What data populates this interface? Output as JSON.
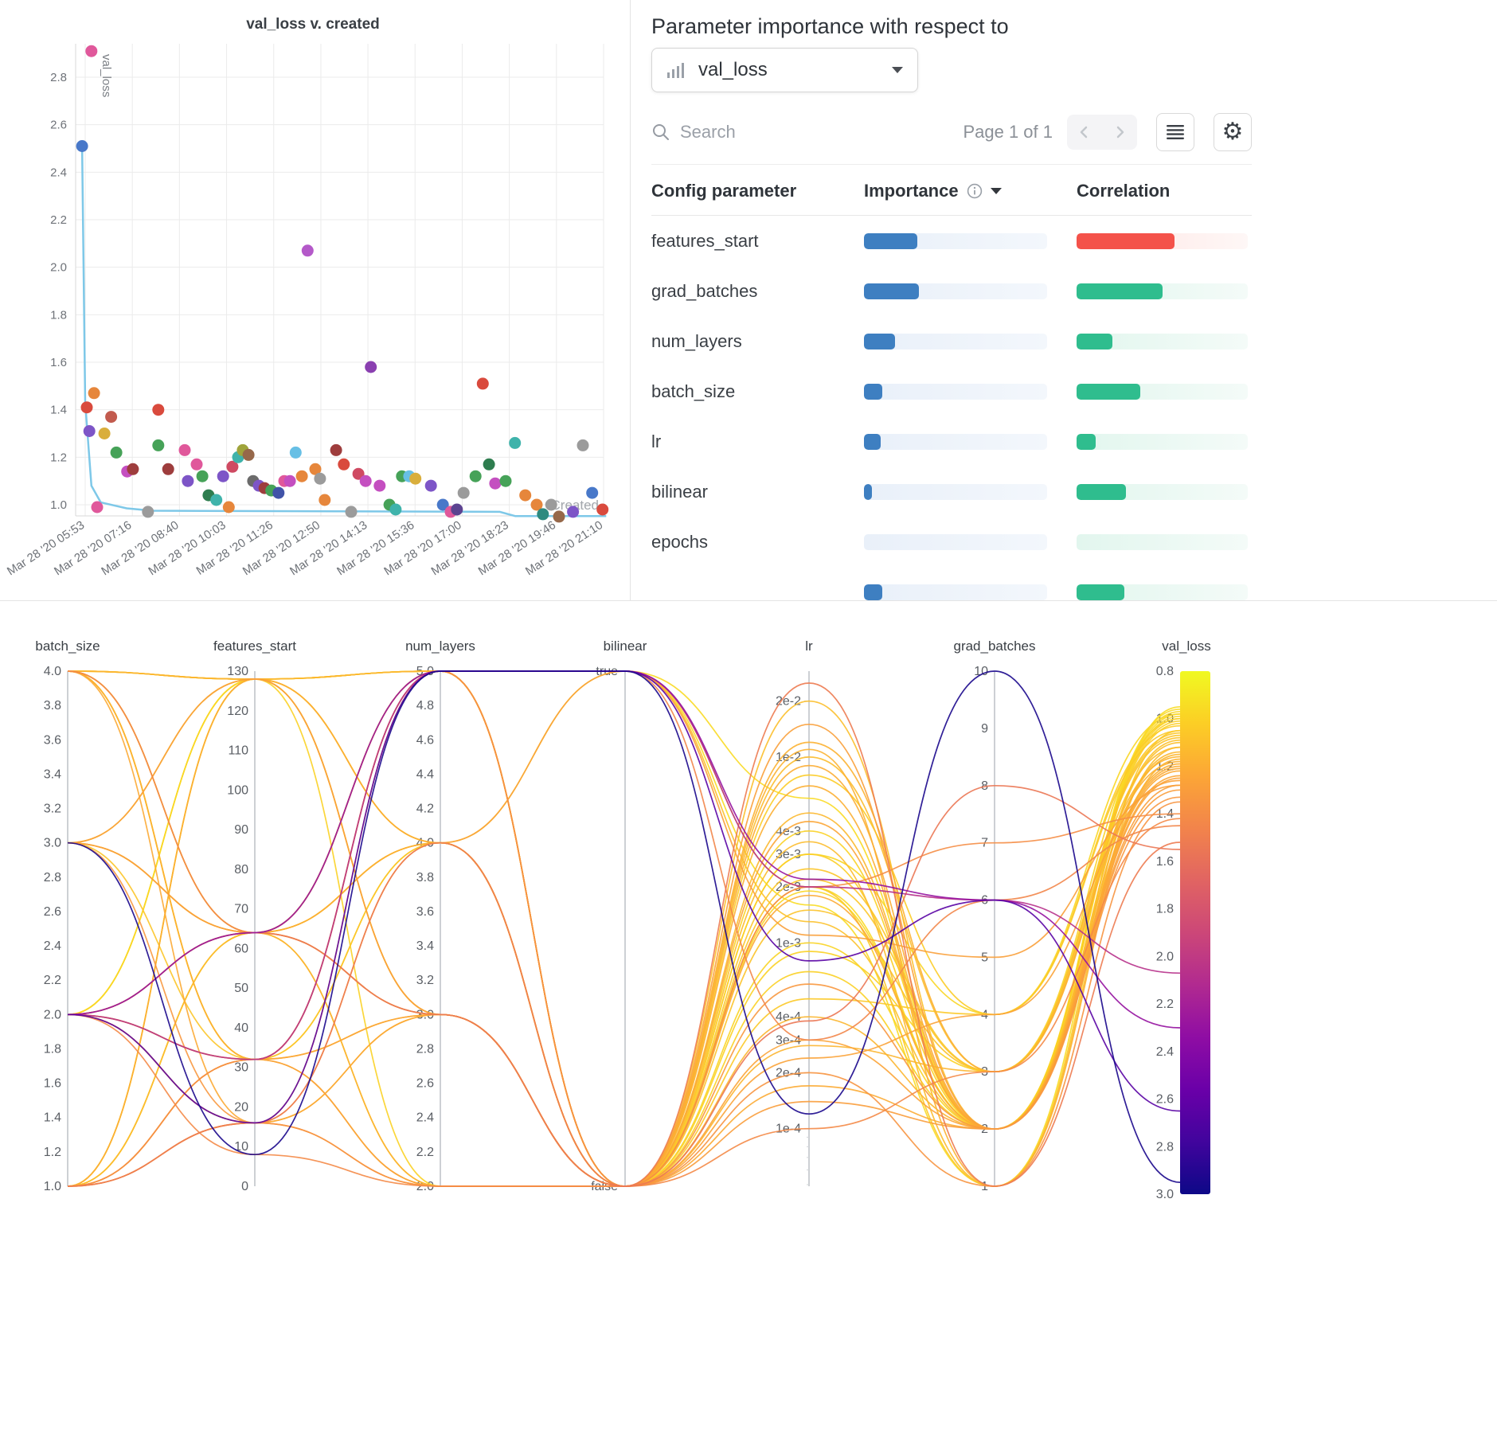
{
  "colors": {
    "accent_blue": "#3e7fc1",
    "importance_fill": "#3e7fc1",
    "importance_track": "#edf2f9",
    "corr_red": "#f4524a",
    "corr_red_track": "#fdeceb",
    "corr_green": "#2fbd8e",
    "corr_green_track": "#e7f7f1",
    "line_blue": "#7ec8e8",
    "panel_border": "#e4e4e4"
  },
  "icons": {
    "gear": "⚙"
  },
  "importance_panel": {
    "title": "Parameter importance with respect to",
    "metric_select": "val_loss",
    "search_placeholder": "Search",
    "pagination": "Page 1 of 1",
    "columns": [
      "Config parameter",
      "Importance",
      "Correlation"
    ],
    "rows": [
      {
        "name": "features_start",
        "importance": 0.29,
        "correlation": 0.57,
        "corr_color": "red"
      },
      {
        "name": "grad_batches",
        "importance": 0.3,
        "correlation": 0.5,
        "corr_color": "green"
      },
      {
        "name": "num_layers",
        "importance": 0.17,
        "correlation": 0.21,
        "corr_color": "green"
      },
      {
        "name": "batch_size",
        "importance": 0.1,
        "correlation": 0.37,
        "corr_color": "green"
      },
      {
        "name": "lr",
        "importance": 0.09,
        "correlation": 0.11,
        "corr_color": "green"
      },
      {
        "name": "bilinear",
        "importance": 0.045,
        "correlation": 0.29,
        "corr_color": "green"
      },
      {
        "name": "epochs",
        "importance": 0.0,
        "correlation": 0.0,
        "corr_color": "green"
      },
      {
        "name": "",
        "importance": 0.1,
        "correlation": 0.28,
        "corr_color": "green"
      }
    ]
  },
  "chart_data": [
    {
      "type": "scatter",
      "title": "val_loss v. created",
      "xlabel": "Created",
      "ylabel": "val_loss",
      "ylim": [
        0.93,
        2.95
      ],
      "x_ticks": [
        "Mar 28 '20 05:53",
        "Mar 28 '20 07:16",
        "Mar 28 '20 08:40",
        "Mar 28 '20 10:03",
        "Mar 28 '20 11:26",
        "Mar 28 '20 12:50",
        "Mar 28 '20 14:13",
        "Mar 28 '20 15:36",
        "Mar 28 '20 17:00",
        "Mar 28 '20 18:23",
        "Mar 28 '20 19:46",
        "Mar 28 '20 21:10"
      ],
      "y_ticks": [
        "2.8",
        "2.6",
        "2.4",
        "2.2",
        "2.0",
        "1.8",
        "1.6",
        "1.4",
        "1.2",
        "1.0"
      ],
      "line": {
        "color": "#7ec8e8",
        "points": [
          [
            -0.006,
            2.51
          ],
          [
            0.0,
            1.43
          ],
          [
            0.012,
            1.08
          ],
          [
            0.03,
            1.01
          ],
          [
            0.08,
            0.985
          ],
          [
            0.13,
            0.975
          ],
          [
            0.8,
            0.97
          ],
          [
            0.83,
            0.952
          ],
          [
            1.005,
            0.952
          ]
        ]
      },
      "points": [
        [
          -0.006,
          2.51,
          "#4878c9"
        ],
        [
          0.012,
          2.91,
          "#e0589b"
        ],
        [
          0.003,
          1.41,
          "#d94a3d"
        ],
        [
          0.008,
          1.31,
          "#7d55c7"
        ],
        [
          0.017,
          1.47,
          "#e6863b"
        ],
        [
          0.023,
          0.99,
          "#e0589b"
        ],
        [
          0.037,
          1.3,
          "#d9ae3c"
        ],
        [
          0.05,
          1.37,
          "#c25b4e"
        ],
        [
          0.06,
          1.22,
          "#46a258"
        ],
        [
          0.081,
          1.14,
          "#c44fc0"
        ],
        [
          0.092,
          1.15,
          "#9e3d3d"
        ],
        [
          0.121,
          0.97,
          "#9b9b9b"
        ],
        [
          0.141,
          1.4,
          "#d94a3d"
        ],
        [
          0.141,
          1.25,
          "#46a258"
        ],
        [
          0.16,
          1.15,
          "#9e3d3d"
        ],
        [
          0.192,
          1.23,
          "#e0589b"
        ],
        [
          0.198,
          1.1,
          "#7d55c7"
        ],
        [
          0.215,
          1.17,
          "#e0589b"
        ],
        [
          0.226,
          1.12,
          "#46a258"
        ],
        [
          0.238,
          1.04,
          "#2e7d4f"
        ],
        [
          0.253,
          1.02,
          "#3fb3ab"
        ],
        [
          0.266,
          1.12,
          "#7d55c7"
        ],
        [
          0.277,
          0.99,
          "#e6863b"
        ],
        [
          0.284,
          1.16,
          "#cf4a62"
        ],
        [
          0.295,
          1.2,
          "#3fb3ab"
        ],
        [
          0.304,
          1.23,
          "#9fa43b"
        ],
        [
          0.315,
          1.21,
          "#96684a"
        ],
        [
          0.324,
          1.1,
          "#6b6b6b"
        ],
        [
          0.335,
          1.08,
          "#7d55c7"
        ],
        [
          0.346,
          1.07,
          "#9e3d3d"
        ],
        [
          0.359,
          1.06,
          "#46a258"
        ],
        [
          0.373,
          1.05,
          "#4153a8"
        ],
        [
          0.384,
          1.1,
          "#e0589b"
        ],
        [
          0.395,
          1.1,
          "#c44fc0"
        ],
        [
          0.406,
          1.22,
          "#67bfe5"
        ],
        [
          0.418,
          1.12,
          "#e6863b"
        ],
        [
          0.429,
          2.07,
          "#b459c9"
        ],
        [
          0.444,
          1.15,
          "#e6863b"
        ],
        [
          0.453,
          1.11,
          "#9b9b9b"
        ],
        [
          0.462,
          1.02,
          "#e6863b"
        ],
        [
          0.484,
          1.23,
          "#9e3d3d"
        ],
        [
          0.499,
          1.17,
          "#d94a3d"
        ],
        [
          0.513,
          0.97,
          "#9b9b9b"
        ],
        [
          0.527,
          1.13,
          "#cf4a62"
        ],
        [
          0.541,
          1.1,
          "#c44fc0"
        ],
        [
          0.551,
          1.58,
          "#8a3fb0"
        ],
        [
          0.568,
          1.08,
          "#c44fc0"
        ],
        [
          0.587,
          1.0,
          "#46a258"
        ],
        [
          0.599,
          0.98,
          "#3fb3ab"
        ],
        [
          0.611,
          1.12,
          "#46a258"
        ],
        [
          0.625,
          1.12,
          "#67bfe5"
        ],
        [
          0.637,
          1.11,
          "#d9ae3c"
        ],
        [
          0.667,
          1.08,
          "#7d55c7"
        ],
        [
          0.69,
          1.0,
          "#4878c9"
        ],
        [
          0.705,
          0.97,
          "#e0589b"
        ],
        [
          0.717,
          0.98,
          "#5c4390"
        ],
        [
          0.73,
          1.05,
          "#9b9b9b"
        ],
        [
          0.753,
          1.12,
          "#46a258"
        ],
        [
          0.767,
          1.51,
          "#d94a3d"
        ],
        [
          0.779,
          1.17,
          "#2e7d4f"
        ],
        [
          0.791,
          1.09,
          "#c44fc0"
        ],
        [
          0.811,
          1.1,
          "#46a258"
        ],
        [
          0.829,
          1.26,
          "#3fb3ab"
        ],
        [
          0.849,
          1.04,
          "#e6863b"
        ],
        [
          0.871,
          1.0,
          "#e6863b"
        ],
        [
          0.883,
          0.96,
          "#2d8a80"
        ],
        [
          0.899,
          1.0,
          "#9b9b9b"
        ],
        [
          0.914,
          0.95,
          "#96684a"
        ],
        [
          0.941,
          0.97,
          "#7d55c7"
        ],
        [
          0.96,
          1.25,
          "#9b9b9b"
        ],
        [
          0.978,
          1.05,
          "#4878c9"
        ],
        [
          0.998,
          0.98,
          "#d94a3d"
        ]
      ]
    },
    {
      "type": "parallel-coordinates",
      "colormap": "plasma-reversed",
      "axes": [
        {
          "name": "batch_size",
          "scale": "linear",
          "domain": [
            1.0,
            4.0
          ],
          "ticks": [
            "4.0",
            "3.8",
            "3.6",
            "3.4",
            "3.2",
            "3.0",
            "2.8",
            "2.6",
            "2.4",
            "2.2",
            "2.0",
            "1.8",
            "1.6",
            "1.4",
            "1.2",
            "1.0"
          ]
        },
        {
          "name": "features_start",
          "scale": "linear",
          "domain": [
            0,
            130
          ],
          "ticks": [
            "130",
            "120",
            "110",
            "100",
            "90",
            "80",
            "70",
            "60",
            "50",
            "40",
            "30",
            "20",
            "10",
            "0"
          ]
        },
        {
          "name": "num_layers",
          "scale": "linear",
          "domain": [
            2.0,
            5.0
          ],
          "ticks": [
            "5.0",
            "4.8",
            "4.6",
            "4.4",
            "4.2",
            "4.0",
            "3.8",
            "3.6",
            "3.4",
            "3.2",
            "3.0",
            "2.8",
            "2.6",
            "2.4",
            "2.2",
            "2.0"
          ]
        },
        {
          "name": "bilinear",
          "scale": "binary",
          "ticks": [
            "true",
            "false"
          ]
        },
        {
          "name": "lr",
          "scale": "log",
          "domain": [
            4.9e-05,
            0.029
          ],
          "ticks": [
            {
              "v": 0.02,
              "t": "2e-2"
            },
            {
              "v": 0.01,
              "t": "1e-2"
            },
            {
              "v": 0.004,
              "t": "4e-3"
            },
            {
              "v": 0.003,
              "t": "3e-3"
            },
            {
              "v": 0.002,
              "t": "2e-3"
            },
            {
              "v": 0.001,
              "t": "1e-3"
            },
            {
              "v": 0.0004,
              "t": "4e-4"
            },
            {
              "v": 0.0003,
              "t": "3e-4"
            },
            {
              "v": 0.0002,
              "t": "2e-4"
            },
            {
              "v": 0.0001,
              "t": "1e-4"
            }
          ]
        },
        {
          "name": "grad_batches",
          "scale": "linear",
          "domain": [
            1,
            10
          ],
          "ticks": [
            "10",
            "9",
            "8",
            "7",
            "6",
            "5",
            "4",
            "3",
            "2",
            "1"
          ]
        },
        {
          "name": "val_loss",
          "scale": "colorbar",
          "domain": [
            0.8,
            3.0
          ],
          "ticks": [
            "0.8",
            "1.0",
            "1.2",
            "1.4",
            "1.6",
            "1.8",
            "2.0",
            "2.2",
            "2.4",
            "2.6",
            "2.8",
            "3.0"
          ]
        }
      ],
      "runs_columns": [
        "batch_size",
        "features_start",
        "num_layers",
        "bilinear",
        "lr",
        "grad_batches",
        "val_loss"
      ],
      "runs": [
        [
          4,
          128,
          5,
          1,
          0.002,
          2,
          0.97
        ],
        [
          4,
          128,
          5,
          0,
          0.001,
          2,
          0.99
        ],
        [
          4,
          64,
          5,
          0,
          0.003,
          2,
          1.02
        ],
        [
          4,
          128,
          4,
          0,
          0.002,
          1,
          1.05
        ],
        [
          3,
          8,
          5,
          1,
          0.00012,
          10,
          2.95
        ],
        [
          2,
          64,
          5,
          1,
          0.0022,
          6,
          2.3
        ],
        [
          2,
          16,
          5,
          1,
          0.0008,
          6,
          2.65
        ],
        [
          1,
          32,
          3,
          0,
          0.02,
          2,
          1.1
        ],
        [
          1,
          64,
          3,
          0,
          0.01,
          3,
          1.12
        ],
        [
          1,
          128,
          2,
          0,
          0.004,
          2,
          1.0
        ],
        [
          2,
          128,
          3,
          0,
          0.003,
          4,
          0.98
        ],
        [
          2,
          64,
          4,
          0,
          0.0015,
          3,
          1.08
        ],
        [
          4,
          32,
          5,
          0,
          0.0004,
          2,
          1.15
        ],
        [
          3,
          64,
          4,
          0,
          0.009,
          2,
          1.2
        ],
        [
          1,
          16,
          2,
          0,
          0.0002,
          1,
          1.35
        ],
        [
          2,
          32,
          3,
          0,
          0.0003,
          2,
          1.25
        ],
        [
          4,
          128,
          5,
          0,
          0.012,
          3,
          1.18
        ],
        [
          1,
          64,
          4,
          0,
          0.0005,
          4,
          1.05
        ],
        [
          2,
          128,
          5,
          1,
          0.006,
          2,
          0.96
        ],
        [
          3,
          32,
          4,
          0,
          0.0025,
          3,
          1.07
        ],
        [
          4,
          16,
          3,
          0,
          0.0018,
          2,
          1.22
        ],
        [
          1,
          128,
          5,
          0,
          0.0007,
          2,
          1.01
        ],
        [
          2,
          16,
          4,
          1,
          0.0011,
          5,
          1.28
        ],
        [
          4,
          64,
          2,
          0,
          0.0035,
          1,
          1.12
        ],
        [
          1,
          32,
          5,
          0,
          0.002,
          7,
          1.4
        ],
        [
          3,
          128,
          3,
          0,
          0.00014,
          2,
          1.3
        ],
        [
          2,
          64,
          2,
          0,
          0.00028,
          3,
          1.16
        ],
        [
          4,
          32,
          4,
          0,
          0.008,
          4,
          1.03
        ],
        [
          1,
          16,
          5,
          0,
          0.0045,
          2,
          1.24
        ],
        [
          2,
          128,
          4,
          1,
          0.0016,
          1,
          0.95
        ],
        [
          3,
          16,
          2,
          0,
          0.0006,
          2,
          1.33
        ],
        [
          4,
          128,
          3,
          0,
          0.0022,
          3,
          1.06
        ],
        [
          1,
          64,
          5,
          1,
          0.0013,
          2,
          1.09
        ],
        [
          2,
          32,
          5,
          0,
          0.005,
          2,
          1.14
        ],
        [
          3,
          64,
          5,
          0,
          0.0009,
          3,
          1.0
        ],
        [
          1,
          128,
          4,
          0,
          0.00017,
          2,
          1.21
        ],
        [
          4,
          64,
          5,
          1,
          0.0003,
          6,
          1.45
        ],
        [
          2,
          16,
          3,
          0,
          0.007,
          2,
          1.19
        ],
        [
          1,
          32,
          2,
          0,
          0.00024,
          4,
          1.26
        ],
        [
          3,
          128,
          5,
          0,
          0.0019,
          2,
          0.98
        ],
        [
          2,
          64,
          3,
          0,
          0.00038,
          8,
          1.55
        ],
        [
          4,
          32,
          2,
          0,
          0.011,
          1,
          1.17
        ],
        [
          2,
          32,
          5,
          1,
          0.002,
          6,
          2.07
        ],
        [
          1,
          16,
          4,
          0,
          0.025,
          1,
          1.52
        ],
        [
          3,
          64,
          3,
          0,
          0.015,
          2,
          1.28
        ],
        [
          2,
          8,
          2,
          0,
          0.0001,
          3,
          1.42
        ]
      ]
    }
  ]
}
